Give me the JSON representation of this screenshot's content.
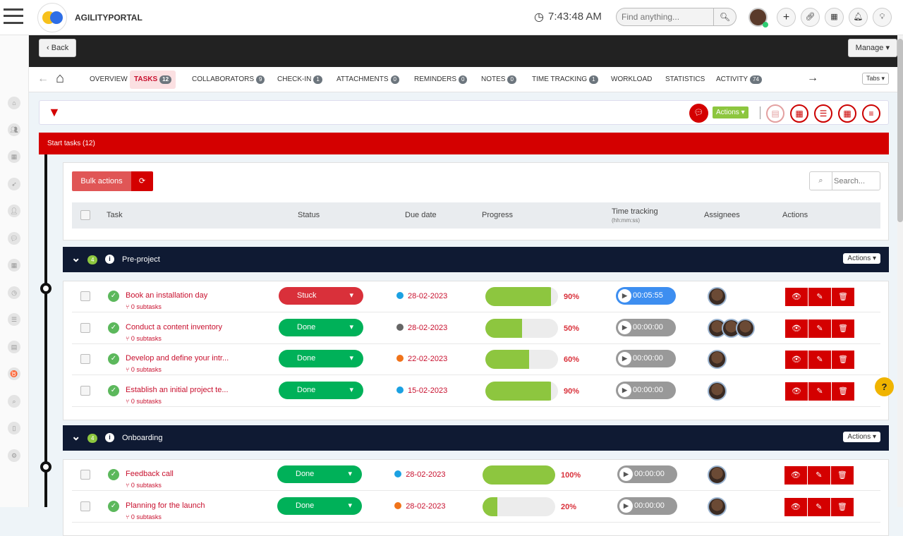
{
  "header": {
    "brand": "AGILITYPORTAL",
    "time": "7:43:48 AM",
    "search_placeholder": "Find anything..."
  },
  "darkbar": {
    "back": "Back",
    "manage": "Manage ▾"
  },
  "tabs": [
    {
      "label": "OVERVIEW",
      "badge": null
    },
    {
      "label": "TASKS",
      "badge": "12",
      "active": true
    },
    {
      "label": "COLLABORATORS",
      "badge": "9"
    },
    {
      "label": "CHECK-IN",
      "badge": "1"
    },
    {
      "label": "ATTACHMENTS",
      "badge": "0"
    },
    {
      "label": "REMINDERS",
      "badge": "0"
    },
    {
      "label": "NOTES",
      "badge": "0"
    },
    {
      "label": "TIME TRACKING",
      "badge": "1"
    },
    {
      "label": "WORKLOAD",
      "badge": null
    },
    {
      "label": "STATISTICS",
      "badge": null
    },
    {
      "label": "ACTIVITY",
      "badge": "74"
    }
  ],
  "tabs_dropdown": "Tabs ▾",
  "toolbar": {
    "actions": "Actions ▾"
  },
  "section": {
    "title": "Start tasks (12)"
  },
  "table": {
    "bulk": "Bulk actions",
    "search_placeholder": "Search...",
    "columns": {
      "task": "Task",
      "status": "Status",
      "due": "Due date",
      "progress": "Progress",
      "time": "Time tracking",
      "time_sub": "(hh:mm:ss)",
      "assignees": "Assignees",
      "actions": "Actions"
    }
  },
  "colors": {
    "stuck": "#d9303a",
    "done": "#00b159",
    "accent": "#d40000",
    "timer_active": "#3d8ef0",
    "timer_idle": "#999999"
  },
  "groups": [
    {
      "name": "Pre-project",
      "count": "4",
      "actions": "Actions ▾",
      "tasks": [
        {
          "name": "Book an installation day",
          "subtasks": "0 subtasks",
          "status": "Stuck",
          "due": "28-02-2023",
          "due_color": "#1ba1e2",
          "progress": 90,
          "time": "00:05:55",
          "timer_active": true,
          "assignees": 1
        },
        {
          "name": "Conduct a content inventory",
          "subtasks": "0 subtasks",
          "status": "Done",
          "due": "28-02-2023",
          "due_color": "#666666",
          "progress": 50,
          "time": "00:00:00",
          "assignees": 3
        },
        {
          "name": "Develop and define your intr...",
          "subtasks": "0 subtasks",
          "status": "Done",
          "due": "22-02-2023",
          "due_color": "#f0731a",
          "progress": 60,
          "time": "00:00:00",
          "assignees": 1
        },
        {
          "name": "Establish an initial project te...",
          "subtasks": "0 subtasks",
          "status": "Done",
          "due": "15-02-2023",
          "due_color": "#1ba1e2",
          "progress": 90,
          "time": "00:00:00",
          "assignees": 1
        }
      ]
    },
    {
      "name": "Onboarding",
      "count": "4",
      "actions": "Actions ▾",
      "tasks": [
        {
          "name": "Feedback call",
          "subtasks": "0 subtasks",
          "status": "Done",
          "due": "28-02-2023",
          "due_color": "#1ba1e2",
          "progress": 100,
          "time": "00:00:00",
          "assignees": 1
        },
        {
          "name": "Planning for the launch",
          "subtasks": "0 subtasks",
          "status": "Done",
          "due": "28-02-2023",
          "due_color": "#f0731a",
          "progress": 20,
          "time": "00:00:00",
          "assignees": 1
        }
      ]
    }
  ],
  "help": "?"
}
